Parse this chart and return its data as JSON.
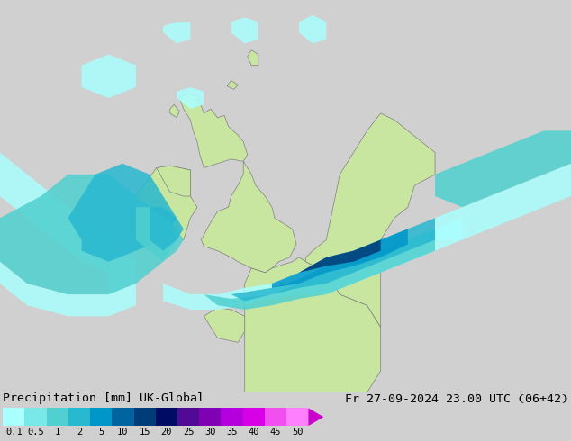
{
  "title_left": "Precipitation [mm] UK-Global",
  "title_right": "Fr 27-09-2024 23.00 UTC ❨06+42❩",
  "colorbar_labels": [
    "0.1",
    "0.5",
    "1",
    "2",
    "5",
    "10",
    "15",
    "20",
    "25",
    "30",
    "35",
    "40",
    "45",
    "50"
  ],
  "colorbar_colors": [
    "#aaffff",
    "#78e8e8",
    "#50d0d0",
    "#28b8d0",
    "#0096c8",
    "#0064a0",
    "#003c78",
    "#000c64",
    "#500a96",
    "#8000b4",
    "#b400dc",
    "#d800e6",
    "#f050f0",
    "#ff80ff"
  ],
  "arrow_color": "#cc00cc",
  "bg_color": "#d0d0d0",
  "land_color": "#c8e6a0",
  "sea_color": "#d0d0d0",
  "coast_color": "#808080",
  "precip_colors": {
    "light": "#aaffff",
    "medium_light": "#50d0d0",
    "medium": "#28b8d0",
    "medium_dark": "#0096c8",
    "dark": "#003c78"
  },
  "font_size_title": 9.5,
  "font_size_ticks": 7.5,
  "figsize": [
    6.34,
    4.9
  ],
  "dpi": 100
}
